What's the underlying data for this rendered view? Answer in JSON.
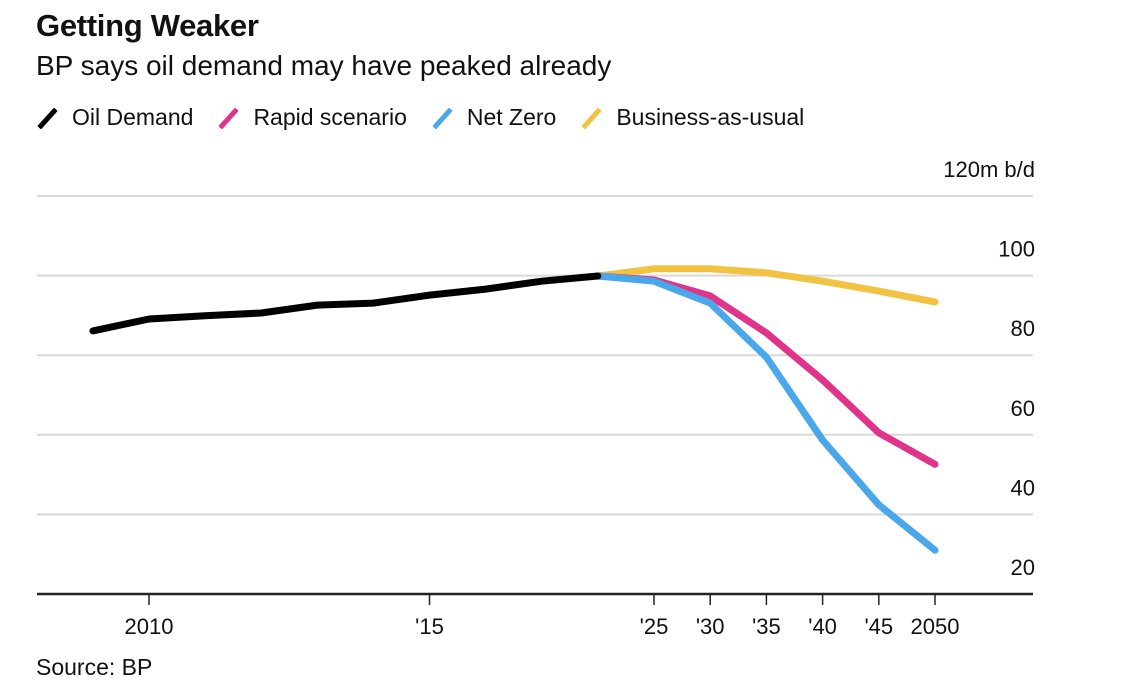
{
  "chart_data": {
    "type": "line",
    "title": "Getting Weaker",
    "subtitle": "BP says oil demand may have peaked already",
    "ylabel": "m b/d",
    "y_unit_label": "120m b/d",
    "ylim": [
      20,
      120
    ],
    "yticks": [
      120,
      100,
      80,
      60,
      40,
      20
    ],
    "ytick_labels": [
      "120m b/d",
      "100",
      "80",
      "60",
      "40",
      "20"
    ],
    "xticks": [
      {
        "year": 2010,
        "label": "2010"
      },
      {
        "year": 2015,
        "label": "'15"
      },
      {
        "year": 2025,
        "label": "'25"
      },
      {
        "year": 2030,
        "label": "'30"
      },
      {
        "year": 2035,
        "label": "'35"
      },
      {
        "year": 2040,
        "label": "'40"
      },
      {
        "year": 2045,
        "label": "'45"
      },
      {
        "year": 2050,
        "label": "2050"
      }
    ],
    "x_scale_note": "annual spacing through 2018, 5-year steps from 2025 drawn at the same per-tick width",
    "grid": true,
    "legend_position": "top-left",
    "series": [
      {
        "name": "Oil Demand",
        "color": "#000000",
        "x": [
          2009,
          2010,
          2011,
          2012,
          2013,
          2014,
          2015,
          2016,
          2017,
          2018
        ],
        "values": [
          86.1,
          89.1,
          89.9,
          90.6,
          92.6,
          93.1,
          95.1,
          96.6,
          98.6,
          99.9
        ]
      },
      {
        "name": "Rapid scenario",
        "color": "#e0338a",
        "x": [
          2018,
          2025,
          2030,
          2035,
          2040,
          2045,
          2050
        ],
        "values": [
          99.9,
          98.9,
          94.9,
          85.6,
          73.8,
          60.5,
          52.6
        ]
      },
      {
        "name": "Net Zero",
        "color": "#4aa8ea",
        "x": [
          2018,
          2025,
          2030,
          2035,
          2040,
          2045,
          2050
        ],
        "values": [
          99.9,
          98.6,
          93.1,
          79.5,
          58.7,
          42.4,
          31.0
        ]
      },
      {
        "name": "Business-as-usual",
        "color": "#f2c342",
        "x": [
          2018,
          2025,
          2030,
          2035,
          2040,
          2045,
          2050
        ],
        "values": [
          99.9,
          101.7,
          101.7,
          100.7,
          98.6,
          96.1,
          93.4
        ]
      }
    ],
    "source": "Source: BP"
  }
}
